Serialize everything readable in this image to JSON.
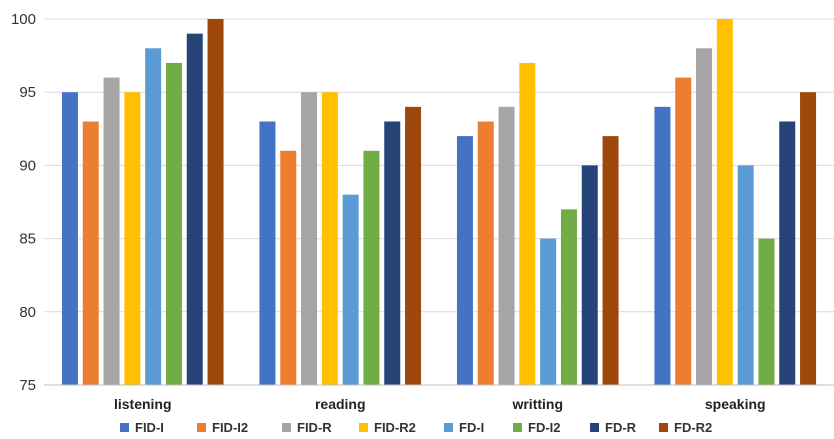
{
  "chart_data": {
    "type": "bar",
    "title": "",
    "xlabel": "",
    "ylabel": "",
    "ylim": [
      75,
      100
    ],
    "yticks": [
      75,
      80,
      85,
      90,
      95,
      100
    ],
    "grid": true,
    "legend_position": "bottom",
    "categories": [
      "listening",
      "reading",
      "writting",
      "speaking"
    ],
    "series": [
      {
        "name": "FID-I",
        "color": "#4472C4",
        "values": [
          95,
          93,
          92,
          94
        ]
      },
      {
        "name": "FID-I2",
        "color": "#ED7D31",
        "values": [
          93,
          91,
          93,
          96
        ]
      },
      {
        "name": "FID-R",
        "color": "#A5A5A5",
        "values": [
          96,
          95,
          94,
          98
        ]
      },
      {
        "name": "FID-R2",
        "color": "#FFC000",
        "values": [
          95,
          95,
          97,
          100
        ]
      },
      {
        "name": "FD-I",
        "color": "#5B9BD5",
        "values": [
          98,
          88,
          85,
          90
        ]
      },
      {
        "name": "FD-I2",
        "color": "#70AD47",
        "values": [
          97,
          91,
          87,
          85
        ]
      },
      {
        "name": "FD-R",
        "color": "#264478",
        "values": [
          99,
          93,
          90,
          93
        ]
      },
      {
        "name": "FD-R2",
        "color": "#9E480E",
        "values": [
          100,
          94,
          92,
          95
        ]
      }
    ]
  }
}
